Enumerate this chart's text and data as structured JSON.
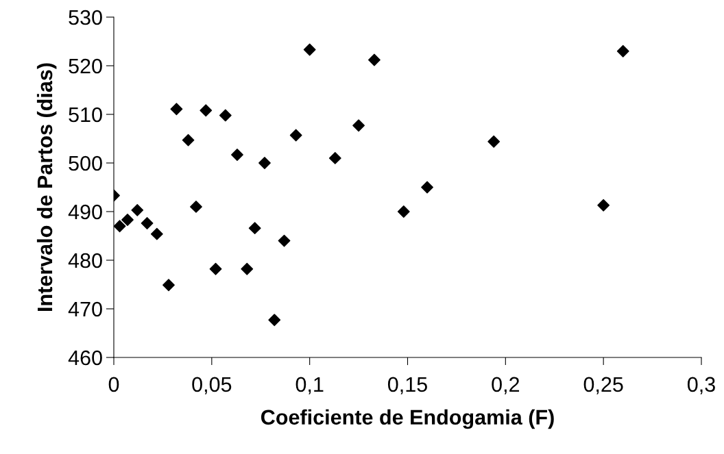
{
  "chart_data": {
    "type": "scatter",
    "xlabel": "Coeficiente de Endogamia (F)",
    "ylabel": "Intervalo de Partos (dias)",
    "x": [
      0,
      0.003,
      0.007,
      0.012,
      0.017,
      0.022,
      0.028,
      0.032,
      0.038,
      0.042,
      0.047,
      0.052,
      0.057,
      0.063,
      0.068,
      0.072,
      0.077,
      0.082,
      0.087,
      0.093,
      0.1,
      0.113,
      0.125,
      0.133,
      0.148,
      0.16,
      0.194,
      0.25,
      0.26
    ],
    "values": [
      493.3,
      487,
      488.3,
      490.3,
      487.6,
      485.4,
      474.9,
      511.1,
      504.7,
      491,
      510.8,
      478.2,
      509.8,
      501.7,
      478.2,
      486.6,
      500,
      467.7,
      484,
      505.7,
      523.3,
      501,
      507.7,
      521.2,
      490,
      495,
      504.4,
      491.3,
      523
    ],
    "color": "#000000",
    "marker": "diamond",
    "xlim": [
      0,
      0.3
    ],
    "xticks": [
      {
        "value": 0,
        "label": "0"
      },
      {
        "value": 0.05,
        "label": "0,05"
      },
      {
        "value": 0.1,
        "label": "0,1"
      },
      {
        "value": 0.15,
        "label": "0,15"
      },
      {
        "value": 0.2,
        "label": "0,2"
      },
      {
        "value": 0.25,
        "label": "0,25"
      },
      {
        "value": 0.3,
        "label": "0,3"
      }
    ],
    "ylim": [
      460,
      530
    ],
    "yticks": [
      460,
      470,
      480,
      490,
      500,
      510,
      520,
      530
    ],
    "grid": false
  }
}
